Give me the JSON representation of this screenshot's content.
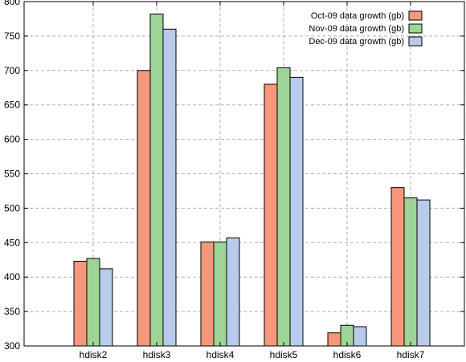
{
  "chart_data": {
    "type": "bar",
    "categories": [
      "hdisk2",
      "hdisk3",
      "hdisk4",
      "hdisk5",
      "hdisk6",
      "hdisk7"
    ],
    "series": [
      {
        "name": "Oct-09 data growth (gb)",
        "color": "#f4977c",
        "values": [
          423,
          700,
          451,
          680,
          319,
          530
        ]
      },
      {
        "name": "Nov-09 data growth (gb)",
        "color": "#9ed497",
        "values": [
          427,
          782,
          451,
          704,
          330,
          515
        ]
      },
      {
        "name": "Dec-09 data growth (gb)",
        "color": "#b9cbea",
        "values": [
          412,
          760,
          457,
          690,
          328,
          512
        ]
      }
    ],
    "y_ticks": [
      300,
      350,
      400,
      450,
      500,
      550,
      600,
      650,
      700,
      750,
      800
    ],
    "ylim": [
      300,
      800
    ],
    "grid": true,
    "legend_position": "top-right",
    "title": "",
    "xlabel": "",
    "ylabel": ""
  }
}
